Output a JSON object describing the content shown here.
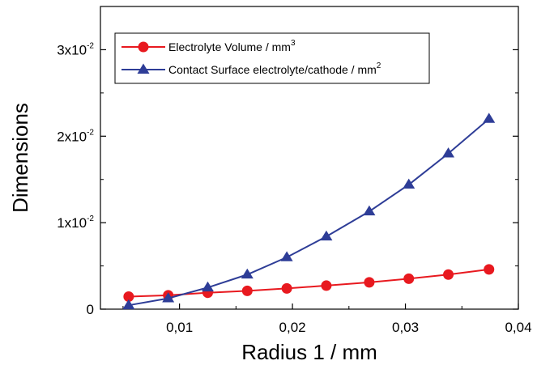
{
  "chart_data": {
    "type": "line",
    "xlabel": "Radius 1 / mm",
    "ylabel": "Dimensions",
    "xlim": [
      0.003,
      0.04
    ],
    "ylim": [
      0,
      0.035
    ],
    "x_ticks": [
      {
        "value": 0.01,
        "label": "0,01"
      },
      {
        "value": 0.02,
        "label": "0,02"
      },
      {
        "value": 0.03,
        "label": "0,03"
      },
      {
        "value": 0.04,
        "label": "0,04"
      }
    ],
    "y_ticks": [
      {
        "value": 0,
        "base": "0",
        "exp": ""
      },
      {
        "value": 0.01,
        "base": "1x10",
        "exp": "-2"
      },
      {
        "value": 0.02,
        "base": "2x10",
        "exp": "-2"
      },
      {
        "value": 0.03,
        "base": "3x10",
        "exp": "-2"
      }
    ],
    "x": [
      0.0055,
      0.009,
      0.0125,
      0.016,
      0.0195,
      0.023,
      0.0268,
      0.0303,
      0.0338,
      0.0374
    ],
    "series": [
      {
        "name": "Electrolyte Volume / mm",
        "name_sup": "3",
        "color": "#e8191f",
        "marker": "circle",
        "values": [
          0.00145,
          0.0016,
          0.0019,
          0.00212,
          0.0024,
          0.00272,
          0.0031,
          0.00352,
          0.004,
          0.0046
        ]
      },
      {
        "name": "Contact Surface electrolyte/cathode / mm",
        "name_sup": "2",
        "color": "#2e3d97",
        "marker": "triangle",
        "values": [
          0.00045,
          0.00125,
          0.0025,
          0.004,
          0.006,
          0.0084,
          0.0113,
          0.0144,
          0.018,
          0.022
        ]
      }
    ],
    "legend_position": "top-left"
  }
}
